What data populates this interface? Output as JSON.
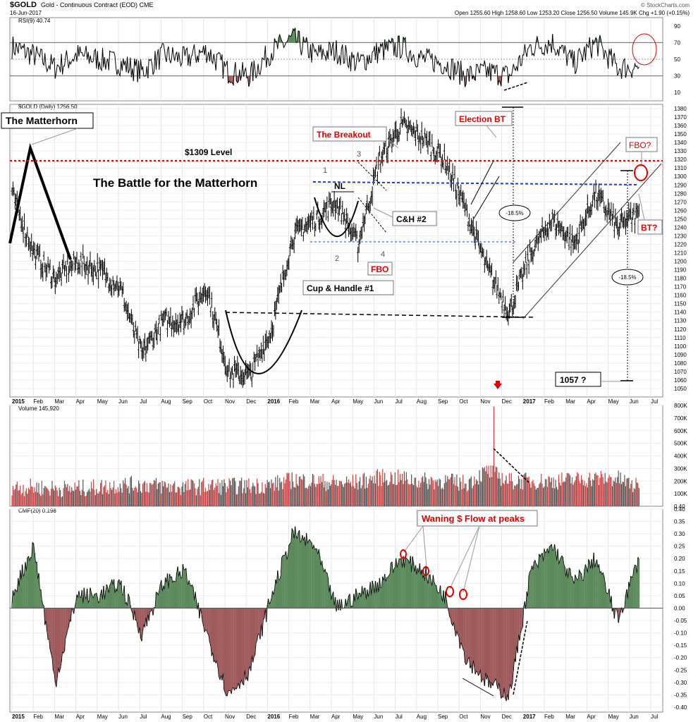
{
  "header": {
    "symbol": "$GOLD",
    "description": "Gold - Continuous Contract (EOD) CME",
    "date": "16-Jun-2017",
    "watermark": "© StockCharts.com",
    "ohlc": "Open 1255.60  High 1258.60  Low 1253.20  Close 1256.50  Volume 145.9K  Chg +1.90 (+0.15%)"
  },
  "x_months": [
    "2015",
    "Feb",
    "Mar",
    "Apr",
    "May",
    "Jun",
    "Jul",
    "Aug",
    "Sep",
    "Oct",
    "Nov",
    "Dec",
    "2016",
    "Feb",
    "Mar",
    "Apr",
    "May",
    "Jun",
    "Jul",
    "Aug",
    "Sep",
    "Oct",
    "Nov",
    "Dec",
    "2017",
    "Feb",
    "Mar",
    "Apr",
    "May",
    "Jun",
    "Jul"
  ],
  "panels": {
    "rsi": {
      "label": "RSI(9) 40.74",
      "ticks": [
        90,
        70,
        50,
        30,
        10
      ],
      "range": [
        0,
        100
      ],
      "last": 40.74
    },
    "price": {
      "label": "$GOLD (Daily) 1256.50",
      "range": [
        1040,
        1385
      ],
      "ticks": [
        1050,
        1060,
        1070,
        1080,
        1090,
        1100,
        1110,
        1120,
        1130,
        1140,
        1150,
        1160,
        1170,
        1180,
        1190,
        1200,
        1210,
        1220,
        1230,
        1240,
        1250,
        1260,
        1270,
        1280,
        1290,
        1300,
        1310,
        1320,
        1330,
        1340,
        1350,
        1360,
        1370,
        1380
      ],
      "last": 1256.5
    },
    "volume": {
      "label": "Volume 145,920",
      "range": [
        0,
        800000
      ],
      "ticks": [
        "800K",
        "700K",
        "600K",
        "500K",
        "400K",
        "300K",
        "200K",
        "100K"
      ],
      "tick_values": [
        800000,
        700000,
        600000,
        500000,
        400000,
        300000,
        200000,
        100000
      ],
      "last": 145920
    },
    "cmf": {
      "label": "CMF(20) 0.198",
      "range": [
        -0.42,
        0.4
      ],
      "ticks": [
        "0.40",
        "0.35",
        "0.30",
        "0.25",
        "0.20",
        "0.15",
        "0.10",
        "0.05",
        "0.00",
        "-0.05",
        "-0.10",
        "-0.15",
        "-0.20",
        "-0.25",
        "-0.30",
        "-0.35",
        "-0.40"
      ],
      "tick_values": [
        0.4,
        0.35,
        0.3,
        0.25,
        0.2,
        0.15,
        0.1,
        0.05,
        0,
        -0.05,
        -0.1,
        -0.15,
        -0.2,
        -0.25,
        -0.3,
        -0.35,
        -0.4
      ],
      "last": 0.198
    }
  },
  "annotations": {
    "matterhorn": "The Matterhorn",
    "level": "$1309 Level",
    "battle": "The Battle for the Matterhorn",
    "breakout": "The Breakout",
    "election": "Election BT",
    "fbo_top": "FBO?",
    "bt": "BT?",
    "nl": "NL",
    "ch2": "C&H #2",
    "fbo": "FBO",
    "ch1": "Cup & Handle #1",
    "pct1": "-18.5%",
    "pct2": "-18.5%",
    "target": "1057 ?",
    "waning": "Waning $ Flow at peaks",
    "n1": "1",
    "n2": "2",
    "n3": "3",
    "n4": "4"
  },
  "colors": {
    "up": "#5b8a5b",
    "down": "#9e5a5a",
    "level": "#e00000",
    "neckline": "#1f3bd6",
    "vol_up": "#555555",
    "vol_down": "#d04040"
  },
  "chart_data": [
    {
      "type": "line",
      "title": "RSI(9)",
      "x": [
        "2015-01",
        "2015-02",
        "2015-03",
        "2015-04",
        "2015-05",
        "2015-06",
        "2015-07",
        "2015-08",
        "2015-09",
        "2015-10",
        "2015-11",
        "2015-12",
        "2016-01",
        "2016-02",
        "2016-03",
        "2016-04",
        "2016-05",
        "2016-06",
        "2016-07",
        "2016-08",
        "2016-09",
        "2016-10",
        "2016-11",
        "2016-12",
        "2017-01",
        "2017-02",
        "2017-03",
        "2017-04",
        "2017-05",
        "2017-06"
      ],
      "values": [
        65,
        55,
        40,
        55,
        50,
        45,
        35,
        55,
        50,
        60,
        35,
        30,
        60,
        75,
        55,
        60,
        45,
        60,
        65,
        50,
        45,
        30,
        35,
        30,
        65,
        70,
        45,
        70,
        40,
        40.74
      ],
      "ylim": [
        0,
        100
      ]
    },
    {
      "type": "line",
      "title": "$GOLD (Daily)",
      "x": [
        "2015-01",
        "2015-02",
        "2015-03",
        "2015-04",
        "2015-05",
        "2015-06",
        "2015-07",
        "2015-08",
        "2015-09",
        "2015-10",
        "2015-11",
        "2015-12",
        "2016-01",
        "2016-02",
        "2016-03",
        "2016-04",
        "2016-05",
        "2016-06",
        "2016-07",
        "2016-08",
        "2016-09",
        "2016-10",
        "2016-11",
        "2016-12",
        "2017-01",
        "2017-02",
        "2017-03",
        "2017-04",
        "2017-05",
        "2017-06"
      ],
      "values": [
        1280,
        1210,
        1180,
        1200,
        1190,
        1170,
        1090,
        1130,
        1130,
        1170,
        1070,
        1065,
        1120,
        1230,
        1250,
        1270,
        1220,
        1320,
        1360,
        1345,
        1320,
        1260,
        1190,
        1140,
        1210,
        1250,
        1220,
        1280,
        1240,
        1256.5
      ],
      "ylim": [
        1040,
        1385
      ]
    },
    {
      "type": "bar",
      "title": "Volume",
      "categories": [
        "2015-01",
        "2015-02",
        "2015-03",
        "2015-04",
        "2015-05",
        "2015-06",
        "2015-07",
        "2015-08",
        "2015-09",
        "2015-10",
        "2015-11",
        "2015-12",
        "2016-01",
        "2016-02",
        "2016-03",
        "2016-04",
        "2016-05",
        "2016-06",
        "2016-07",
        "2016-08",
        "2016-09",
        "2016-10",
        "2016-11",
        "2016-12",
        "2017-01",
        "2017-02",
        "2017-03",
        "2017-04",
        "2017-05",
        "2017-06"
      ],
      "values": [
        150000,
        150000,
        140000,
        140000,
        150000,
        170000,
        170000,
        160000,
        150000,
        160000,
        160000,
        160000,
        170000,
        210000,
        200000,
        180000,
        190000,
        230000,
        220000,
        200000,
        200000,
        180000,
        280000,
        200000,
        200000,
        200000,
        210000,
        220000,
        220000,
        145920
      ],
      "ylim": [
        0,
        800000
      ]
    },
    {
      "type": "area",
      "title": "CMF(20)",
      "x": [
        "2015-01",
        "2015-02",
        "2015-03",
        "2015-04",
        "2015-05",
        "2015-06",
        "2015-07",
        "2015-08",
        "2015-09",
        "2015-10",
        "2015-11",
        "2015-12",
        "2016-01",
        "2016-02",
        "2016-03",
        "2016-04",
        "2016-05",
        "2016-06",
        "2016-07",
        "2016-08",
        "2016-09",
        "2016-10",
        "2016-11",
        "2016-12",
        "2017-01",
        "2017-02",
        "2017-03",
        "2017-04",
        "2017-05",
        "2017-06"
      ],
      "values": [
        0.05,
        0.25,
        -0.3,
        0.05,
        0.05,
        0.1,
        -0.1,
        0.1,
        0.15,
        -0.1,
        -0.35,
        -0.25,
        0.05,
        0.3,
        0.25,
        0.0,
        0.05,
        0.1,
        0.2,
        0.15,
        0.05,
        -0.2,
        -0.3,
        -0.35,
        0.15,
        0.25,
        0.1,
        0.2,
        -0.05,
        0.198
      ],
      "ylim": [
        -0.42,
        0.4
      ]
    }
  ]
}
